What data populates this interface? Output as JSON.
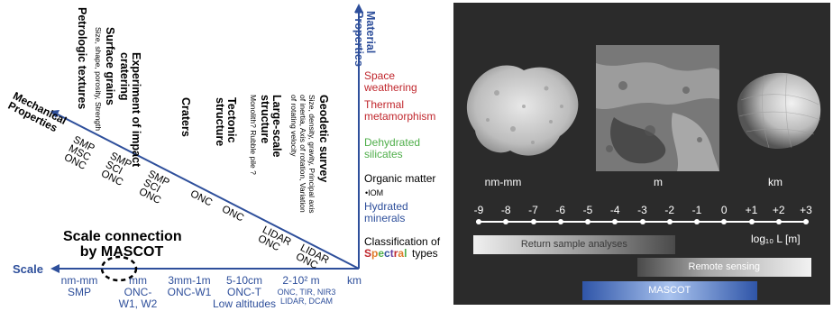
{
  "left": {
    "axis_scale_label": "Scale",
    "axis_material_label": "Material Properties",
    "axis_mechanical_label": "Mechanical Properties",
    "mascot_title_line1": "Scale connection",
    "mascot_title_line2": "by MASCOT",
    "diagonal_labels": [
      {
        "title": "Petrologic textures",
        "sub": ""
      },
      {
        "title": "Surface grains",
        "sub": "Size, shape, porosity, Strength"
      },
      {
        "title": "Experiment of impact cratering",
        "sub": ""
      },
      {
        "title": "Craters",
        "sub": ""
      },
      {
        "title": "Tectonic structure",
        "sub": ""
      },
      {
        "title": "Large-scale structure",
        "sub": "Monolith?  Rubble pile ?"
      },
      {
        "title": "Geodetic survey",
        "sub": "Size, density, gravity, Principal axis of inertia, Axis of rotation, Variation of rotating velocity"
      }
    ],
    "instruments_on_diagonal": [
      {
        "lines": [
          "SMP",
          "MSC",
          "ONC"
        ]
      },
      {
        "lines": [
          "SMP",
          "SCI",
          "ONC"
        ]
      },
      {
        "lines": [
          "SMP",
          "SCI",
          "ONC"
        ]
      },
      {
        "lines": [
          "ONC"
        ]
      },
      {
        "lines": [
          "ONC"
        ]
      },
      {
        "lines": [
          "LIDAR",
          "ONC"
        ]
      },
      {
        "lines": [
          "LIDAR",
          "ONC"
        ]
      }
    ],
    "scale_labels": [
      {
        "lines": [
          "nm-mm",
          "SMP"
        ]
      },
      {
        "lines": [
          "mm",
          "ONC-",
          "W1, W2"
        ]
      },
      {
        "lines": [
          "3mm-1m",
          "ONC-W1"
        ]
      },
      {
        "lines": [
          "5-10cm",
          "ONC-T",
          "Low altitudes"
        ]
      },
      {
        "lines": [
          "2-10² m"
        ]
      },
      {
        "lines": [
          "ONC, TIR, NIR3",
          "LIDAR, DCAM"
        ]
      },
      {
        "lines": [
          "km"
        ]
      }
    ],
    "material_labels": [
      {
        "text": "Space weathering",
        "color": "#c0272d"
      },
      {
        "text": "Thermal metamorphism",
        "color": "#c0272d"
      },
      {
        "text": "Dehydrated silicates",
        "color": "#4fae4a"
      },
      {
        "text": "Organic matter",
        "color": "#000000"
      },
      {
        "text": "•IOM",
        "color": "#000000"
      },
      {
        "text": "Hydrated minerals",
        "color": "#2e4f9b"
      },
      {
        "text": "Classification of",
        "color": "#000000"
      },
      {
        "text": "Spectral",
        "color": "#2e4f9b"
      },
      {
        "text": "types",
        "color": "#000000"
      }
    ],
    "colors": {
      "axis": "#2e4f9b",
      "space": "#c0272d",
      "dehyd": "#4fae4a",
      "hydrated": "#2e4f9b"
    }
  },
  "right": {
    "image_labels": [
      "nm-mm",
      "m",
      "km"
    ],
    "ticks": [
      "-9",
      "-8",
      "-7",
      "-6",
      "-5",
      "-4",
      "-3",
      "-2",
      "-1",
      "0",
      "+1",
      "+2",
      "+3"
    ],
    "axis_label": "log₁₀ L [m]",
    "bars": [
      {
        "label": "Return sample analyses",
        "from": "-9",
        "to": "-2"
      },
      {
        "label": "Remote sensing",
        "from": "-3",
        "to": "+3"
      },
      {
        "label": "MASCOT",
        "from": "-5",
        "to": "+1"
      }
    ]
  }
}
